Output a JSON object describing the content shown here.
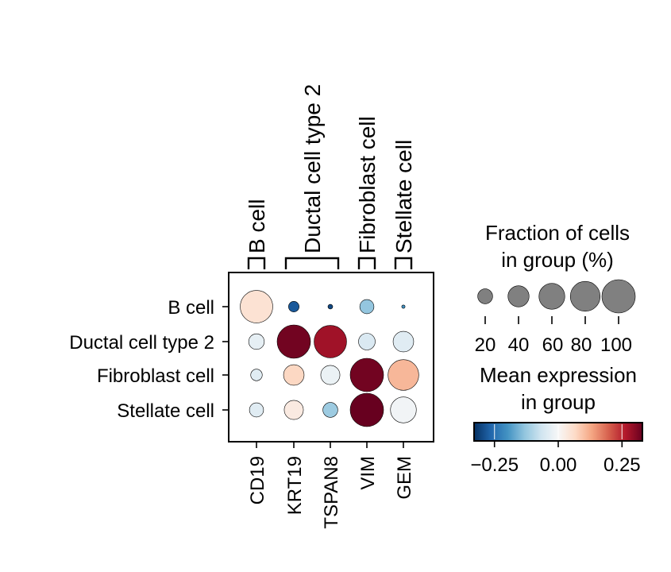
{
  "chart_data": {
    "type": "dotplot",
    "genes": [
      "CD19",
      "KRT19",
      "TSPAN8",
      "VIM",
      "GEM"
    ],
    "cell_groups": [
      "B cell",
      "Ductal cell type 2",
      "Fibroblast cell",
      "Stellate cell"
    ],
    "var_groups": [
      {
        "label": "B cell",
        "genes": [
          "CD19"
        ]
      },
      {
        "label": "Ductal cell type 2",
        "genes": [
          "KRT19",
          "TSPAN8"
        ]
      },
      {
        "label": "Fibroblast cell",
        "genes": [
          "VIM"
        ]
      },
      {
        "label": "Stellate cell",
        "genes": [
          "GEM"
        ]
      }
    ],
    "fraction_percent": [
      [
        95,
        10,
        2,
        18,
        1
      ],
      [
        22,
        100,
        95,
        25,
        38
      ],
      [
        12,
        38,
        33,
        100,
        85
      ],
      [
        18,
        33,
        20,
        100,
        60
      ]
    ],
    "mean_expression": [
      [
        0.05,
        -0.28,
        -0.3,
        -0.13,
        -0.2
      ],
      [
        -0.03,
        0.32,
        0.28,
        -0.05,
        -0.04
      ],
      [
        -0.04,
        0.07,
        -0.02,
        0.32,
        0.11
      ],
      [
        -0.04,
        0.03,
        -0.12,
        0.33,
        -0.01
      ]
    ],
    "size_legend": {
      "title_line1": "Fraction of cells",
      "title_line2": "in group (%)",
      "values": [
        20,
        40,
        60,
        80,
        100
      ],
      "tick_labels": [
        "20",
        "40",
        "60",
        "80",
        "100"
      ]
    },
    "color_legend": {
      "title_line1": "Mean expression",
      "title_line2": "in group",
      "range": [
        -0.33,
        0.33
      ],
      "ticks": [
        -0.25,
        0.0,
        0.25
      ],
      "tick_labels": [
        "−0.25",
        "0.00",
        "0.25"
      ],
      "colormap": "RdBu_r"
    }
  }
}
